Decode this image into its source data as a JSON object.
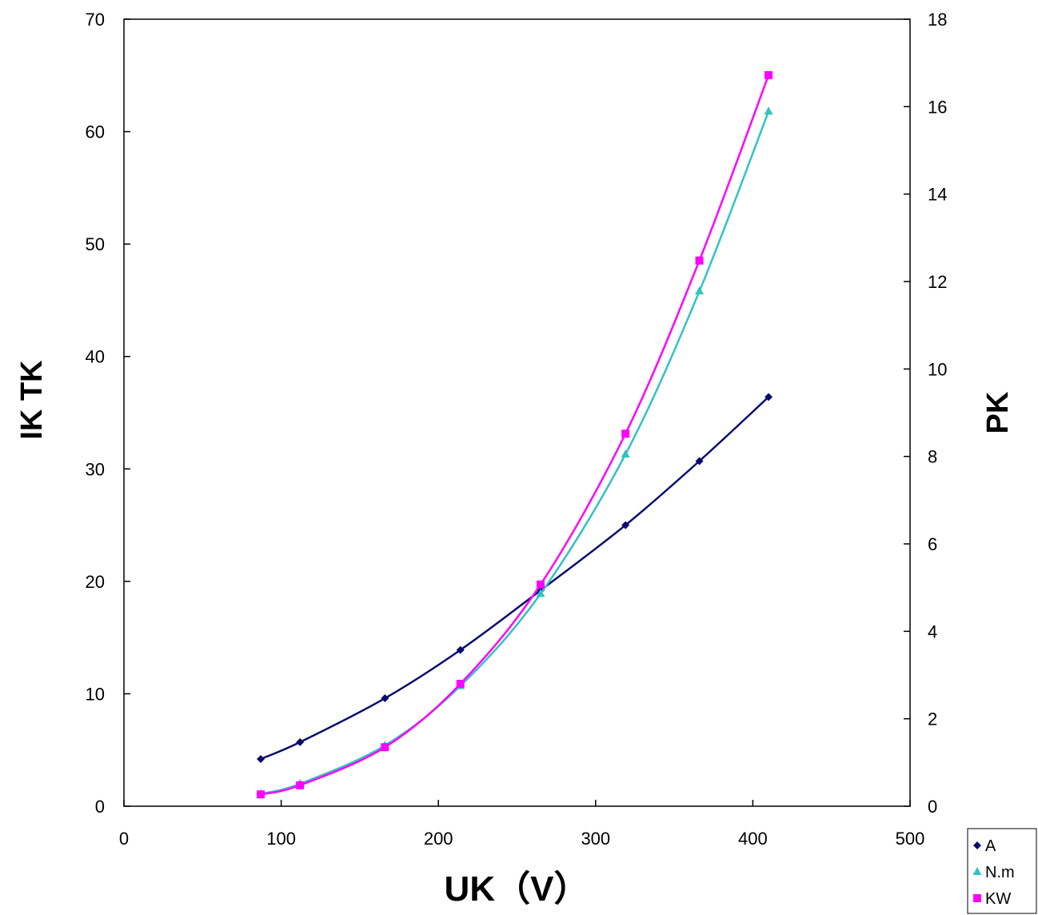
{
  "chart_data": {
    "type": "line",
    "xlabel": "UK（V）",
    "ylabel": "IK TK",
    "y2label": "PK",
    "xlim": [
      0,
      500
    ],
    "ylim": [
      0,
      70
    ],
    "y2lim": [
      0,
      18
    ],
    "x_ticks": [
      "0",
      "100",
      "200",
      "300",
      "400",
      "500"
    ],
    "y_ticks": [
      "0",
      "10",
      "20",
      "30",
      "40",
      "50",
      "60",
      "70"
    ],
    "y2_ticks": [
      "0",
      "2",
      "4",
      "6",
      "8",
      "10",
      "12",
      "14",
      "16",
      "18"
    ],
    "grid": false,
    "legend_position": "bottom-right",
    "series": [
      {
        "name": "A",
        "axis": "left",
        "marker": "diamond",
        "color": "#0a0a6e",
        "x": [
          87,
          112,
          166,
          214,
          265,
          319,
          366,
          410
        ],
        "y": [
          4.2,
          5.7,
          9.6,
          13.9,
          19.2,
          25.0,
          30.7,
          36.4
        ]
      },
      {
        "name": "N.m",
        "axis": "left",
        "marker": "triangle",
        "color": "#33c2c2",
        "x": [
          87,
          112,
          166,
          214,
          265,
          319,
          366,
          410
        ],
        "y": [
          1.1,
          2.0,
          5.4,
          10.7,
          18.9,
          31.3,
          45.8,
          61.8
        ]
      },
      {
        "name": "KW",
        "axis": "right",
        "marker": "square",
        "color": "#ff00ff",
        "x": [
          87,
          112,
          166,
          214,
          265,
          319,
          366,
          410
        ],
        "y": [
          0.27,
          0.48,
          1.35,
          2.8,
          5.07,
          8.52,
          12.48,
          16.72
        ]
      }
    ]
  }
}
